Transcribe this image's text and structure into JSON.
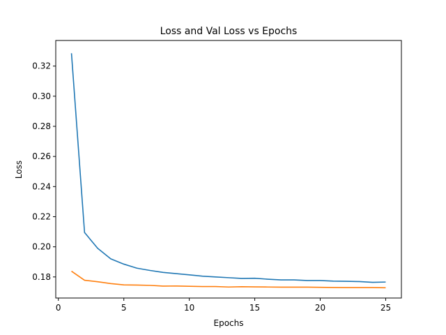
{
  "chart_data": {
    "type": "line",
    "title": "Loss and Val Loss vs Epochs",
    "xlabel": "Epochs",
    "ylabel": "Loss",
    "xlim": [
      -0.2,
      26.2
    ],
    "ylim": [
      0.166,
      0.337
    ],
    "x_ticks": [
      0,
      5,
      10,
      15,
      20,
      25
    ],
    "x_tick_labels": [
      "0",
      "5",
      "10",
      "15",
      "20",
      "25"
    ],
    "y_ticks": [
      0.18,
      0.2,
      0.22,
      0.24,
      0.26,
      0.28,
      0.3,
      0.32
    ],
    "y_tick_labels": [
      "0.18",
      "0.20",
      "0.22",
      "0.24",
      "0.26",
      "0.28",
      "0.30",
      "0.32"
    ],
    "grid": false,
    "x": [
      1,
      2,
      3,
      4,
      5,
      6,
      7,
      8,
      9,
      10,
      11,
      12,
      13,
      14,
      15,
      16,
      17,
      18,
      19,
      20,
      21,
      22,
      23,
      24,
      25
    ],
    "series": [
      {
        "name": "Loss",
        "color": "#1f77b4",
        "values": [
          0.3285,
          0.2095,
          0.199,
          0.192,
          0.1885,
          0.1858,
          0.1843,
          0.183,
          0.1822,
          0.1814,
          0.1805,
          0.18,
          0.1795,
          0.179,
          0.1791,
          0.1785,
          0.178,
          0.178,
          0.1776,
          0.1776,
          0.1772,
          0.1771,
          0.1769,
          0.1764,
          0.1766
        ]
      },
      {
        "name": "Val Loss",
        "color": "#ff7f0e",
        "values": [
          0.1838,
          0.1778,
          0.1768,
          0.1756,
          0.1747,
          0.1746,
          0.1744,
          0.1739,
          0.174,
          0.1738,
          0.1736,
          0.1736,
          0.1733,
          0.1735,
          0.1734,
          0.1733,
          0.1732,
          0.1732,
          0.1732,
          0.1731,
          0.173,
          0.1729,
          0.1729,
          0.1729,
          0.1728
        ]
      }
    ]
  }
}
